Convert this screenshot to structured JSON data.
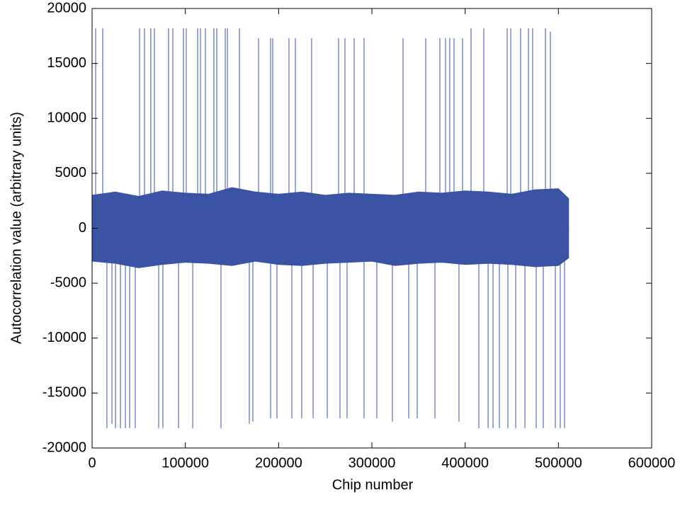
{
  "chart_data": {
    "type": "line",
    "xlabel": "Chip number",
    "ylabel": "Autocorrelation value (arbitrary units)",
    "xlim": [
      0,
      600000
    ],
    "ylim": [
      -20000,
      20000
    ],
    "xticks": [
      0,
      100000,
      200000,
      300000,
      400000,
      500000,
      600000
    ],
    "yticks": [
      -20000,
      -15000,
      -10000,
      -5000,
      0,
      5000,
      10000,
      15000,
      20000
    ],
    "color": "#3a53a4",
    "series": [
      {
        "style": "envelope",
        "color": "#3a53a4",
        "x": [
          0,
          25000,
          50000,
          75000,
          100000,
          125000,
          150000,
          175000,
          200000,
          225000,
          250000,
          275000,
          300000,
          325000,
          350000,
          375000,
          400000,
          425000,
          450000,
          475000,
          500000,
          511000
        ],
        "values": [
          3000,
          3300,
          2900,
          3400,
          3200,
          3100,
          3700,
          3300,
          3100,
          3300,
          3000,
          3200,
          3100,
          3000,
          3300,
          3200,
          3400,
          3300,
          3100,
          3500,
          3600,
          2700
        ]
      },
      {
        "style": "envelope",
        "color": "#3a53a4",
        "x": [
          0,
          25000,
          50000,
          75000,
          100000,
          125000,
          150000,
          175000,
          200000,
          225000,
          250000,
          275000,
          300000,
          325000,
          350000,
          375000,
          400000,
          425000,
          450000,
          475000,
          500000,
          511000
        ],
        "values": [
          -3000,
          -3200,
          -3600,
          -3300,
          -3100,
          -3200,
          -3400,
          -3000,
          -3300,
          -3400,
          -3200,
          -3100,
          -3000,
          -3400,
          -3200,
          -3100,
          -3300,
          -3200,
          -3300,
          -3500,
          -3400,
          -2700
        ]
      },
      {
        "style": "spikes",
        "color": "#3a53a4",
        "x": [
          3800,
          11400,
          50900,
          56200,
          63000,
          66800,
          82000,
          86600,
          98000,
          101000,
          113200,
          116200,
          121500,
          130600,
          133700,
          142800,
          145100,
          158000,
          178500,
          191400,
          193700,
          211100,
          218000,
          235400,
          264300,
          271100,
          281000,
          291600,
          333400,
          357700,
          372900,
          379000,
          383500,
          388100,
          397200,
          406300,
          420000,
          445100,
          448900,
          459500,
          467900,
          472400,
          486100,
          491400,
          15900,
          21300,
          25100,
          30400,
          35700,
          40300,
          46300,
          71400,
          75900,
          92700,
          107900,
          138200,
          168600,
          172400,
          191400,
          198200,
          214200,
          224800,
          237000,
          252200,
          265800,
          273400,
          291600,
          305300,
          322000,
          339500,
          348600,
          367600,
          393400,
          414700,
          424600,
          429900,
          436700,
          445800,
          454200,
          464100,
          476200,
          483800,
          496700,
          502000,
          506600
        ],
        "values": [
          18200,
          18200,
          18200,
          18200,
          18200,
          18200,
          18200,
          18200,
          18200,
          18200,
          18200,
          18200,
          18200,
          18200,
          18200,
          18200,
          18200,
          18200,
          17300,
          17300,
          17300,
          17300,
          17300,
          17300,
          17300,
          17300,
          17300,
          17300,
          17300,
          17300,
          17300,
          17300,
          17300,
          17300,
          17300,
          18200,
          18200,
          18200,
          18200,
          18200,
          18200,
          18200,
          18200,
          17900,
          -18200,
          -17800,
          -18200,
          -18200,
          -18200,
          -18200,
          -18200,
          -18200,
          -18200,
          -18200,
          -18200,
          -18200,
          -17800,
          -17600,
          -17300,
          -17300,
          -17300,
          -17300,
          -17300,
          -17300,
          -17300,
          -17300,
          -17300,
          -17300,
          -17600,
          -17300,
          -17300,
          -17300,
          -17600,
          -18200,
          -18200,
          -18200,
          -18200,
          -18200,
          -18200,
          -18200,
          -18200,
          -18200,
          -18200,
          -18200,
          -18200
        ]
      }
    ]
  }
}
